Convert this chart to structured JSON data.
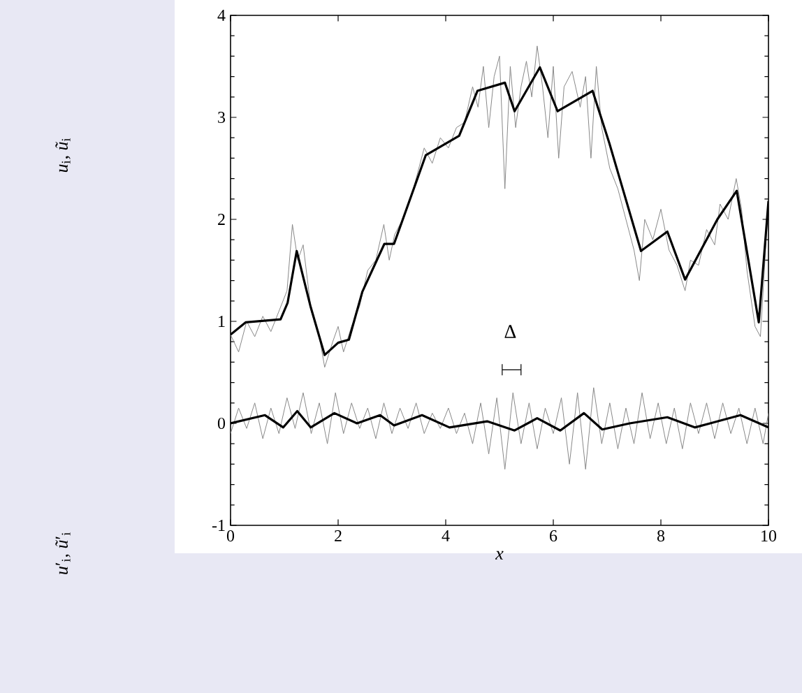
{
  "chart_data": {
    "type": "line",
    "xlabel": "x",
    "xlim": [
      0,
      10
    ],
    "xticks": [
      0,
      2,
      4,
      6,
      8,
      10
    ],
    "ylim": [
      -1,
      4
    ],
    "yticks": [
      -1,
      0,
      1,
      2,
      3,
      4
    ],
    "annotations": [
      "*u*$_{i}$, *ũ*$_{i}$",
      "*u*′$_{i}$, *ũ*′$_{i}$",
      "Δ"
    ],
    "series": [
      {
        "color": "#888888",
        "x": [
          0,
          0.15,
          0.3,
          0.45,
          0.6,
          0.75,
          0.9,
          1.05,
          1.15,
          1.25,
          1.35,
          1.5,
          1.65,
          1.75,
          1.9,
          2.0,
          2.1,
          2.25,
          2.4,
          2.55,
          2.7,
          2.85,
          2.95,
          3.05,
          3.2,
          3.4,
          3.6,
          3.75,
          3.9,
          4.05,
          4.2,
          4.35,
          4.5,
          4.6,
          4.7,
          4.8,
          4.9,
          5.0,
          5.1,
          5.2,
          5.3,
          5.4,
          5.5,
          5.6,
          5.7,
          5.8,
          5.9,
          6.0,
          6.1,
          6.2,
          6.35,
          6.5,
          6.6,
          6.7,
          6.8,
          6.9,
          7.05,
          7.2,
          7.35,
          7.5,
          7.6,
          7.7,
          7.85,
          8.0,
          8.15,
          8.3,
          8.45,
          8.55,
          8.7,
          8.85,
          9.0,
          9.1,
          9.25,
          9.4,
          9.5,
          9.6,
          9.75,
          9.85,
          10
        ],
        "values": [
          0.87,
          0.7,
          1.0,
          0.85,
          1.05,
          0.9,
          1.1,
          1.3,
          1.95,
          1.6,
          1.75,
          1.1,
          0.85,
          0.55,
          0.8,
          0.95,
          0.7,
          0.95,
          1.15,
          1.5,
          1.6,
          1.95,
          1.6,
          1.85,
          2.0,
          2.3,
          2.7,
          2.55,
          2.8,
          2.7,
          2.9,
          2.95,
          3.3,
          3.1,
          3.5,
          2.9,
          3.4,
          3.6,
          2.3,
          3.5,
          2.9,
          3.3,
          3.55,
          3.2,
          3.7,
          3.3,
          2.8,
          3.5,
          2.6,
          3.3,
          3.45,
          3.1,
          3.4,
          2.6,
          3.5,
          2.9,
          2.5,
          2.3,
          2.0,
          1.7,
          1.4,
          2.0,
          1.8,
          2.1,
          1.7,
          1.55,
          1.3,
          1.6,
          1.55,
          1.9,
          1.75,
          2.15,
          2.0,
          2.4,
          2.1,
          1.5,
          0.95,
          0.85,
          2.18
        ]
      },
      {
        "color": "#000000",
        "x": [
          0,
          0.28,
          0.93,
          1.06,
          1.23,
          1.49,
          1.75,
          2.0,
          2.2,
          2.45,
          2.86,
          3.04,
          3.63,
          4.25,
          4.59,
          5.1,
          5.28,
          5.75,
          6.08,
          6.73,
          7.04,
          7.63,
          8.12,
          8.45,
          9.05,
          9.41,
          9.82,
          10
        ],
        "values": [
          0.87,
          0.99,
          1.02,
          1.18,
          1.69,
          1.14,
          0.67,
          0.79,
          0.82,
          1.29,
          1.76,
          1.76,
          2.63,
          2.82,
          3.26,
          3.34,
          3.06,
          3.49,
          3.06,
          3.26,
          2.75,
          1.69,
          1.88,
          1.41,
          2.0,
          2.28,
          0.99,
          2.18
        ]
      },
      {
        "color": "#888888",
        "x": [
          0,
          0.15,
          0.3,
          0.45,
          0.6,
          0.75,
          0.9,
          1.05,
          1.2,
          1.35,
          1.5,
          1.65,
          1.8,
          1.95,
          2.1,
          2.25,
          2.4,
          2.55,
          2.7,
          2.85,
          3.0,
          3.15,
          3.3,
          3.45,
          3.6,
          3.75,
          3.9,
          4.05,
          4.2,
          4.35,
          4.5,
          4.65,
          4.8,
          4.95,
          5.1,
          5.25,
          5.4,
          5.55,
          5.7,
          5.85,
          6.0,
          6.15,
          6.3,
          6.45,
          6.6,
          6.75,
          6.9,
          7.05,
          7.2,
          7.35,
          7.5,
          7.65,
          7.8,
          7.95,
          8.1,
          8.25,
          8.4,
          8.55,
          8.7,
          8.85,
          9.0,
          9.15,
          9.3,
          9.45,
          9.6,
          9.75,
          9.9,
          10
        ],
        "values": [
          -0.1,
          0.15,
          -0.05,
          0.2,
          -0.15,
          0.15,
          -0.1,
          0.25,
          -0.05,
          0.3,
          -0.1,
          0.2,
          -0.2,
          0.3,
          -0.1,
          0.2,
          -0.05,
          0.15,
          -0.15,
          0.2,
          -0.1,
          0.15,
          -0.05,
          0.2,
          -0.1,
          0.1,
          -0.05,
          0.15,
          -0.1,
          0.1,
          -0.2,
          0.2,
          -0.3,
          0.25,
          -0.45,
          0.3,
          -0.2,
          0.2,
          -0.25,
          0.15,
          -0.1,
          0.25,
          -0.4,
          0.3,
          -0.45,
          0.35,
          -0.2,
          0.2,
          -0.25,
          0.15,
          -0.2,
          0.3,
          -0.15,
          0.2,
          -0.2,
          0.15,
          -0.25,
          0.2,
          -0.1,
          0.2,
          -0.15,
          0.2,
          -0.1,
          0.15,
          -0.2,
          0.15,
          -0.2,
          0.1
        ]
      },
      {
        "color": "#000000",
        "x": [
          0,
          0.64,
          0.98,
          1.24,
          1.49,
          1.93,
          2.35,
          2.78,
          3.04,
          3.56,
          4.07,
          4.77,
          5.28,
          5.7,
          6.13,
          6.57,
          6.91,
          7.42,
          8.12,
          8.63,
          9.48,
          10
        ],
        "values": [
          0,
          0.08,
          -0.04,
          0.12,
          -0.04,
          0.1,
          0,
          0.08,
          -0.02,
          0.08,
          -0.04,
          0.02,
          -0.07,
          0.05,
          -0.07,
          0.1,
          -0.06,
          0,
          0.06,
          -0.04,
          0.08,
          -0.04
        ]
      }
    ]
  }
}
